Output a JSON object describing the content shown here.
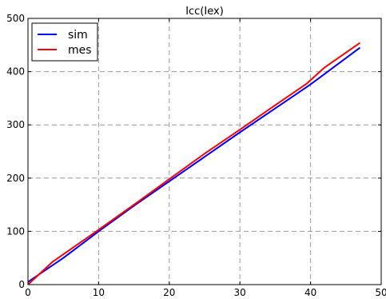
{
  "chart_data": {
    "type": "line",
    "title": "Icc(Iex)",
    "xlabel": "",
    "ylabel": "",
    "xlim": [
      0,
      50
    ],
    "ylim": [
      0,
      500
    ],
    "xticks": [
      "0",
      "10",
      "20",
      "30",
      "40",
      "50"
    ],
    "yticks": [
      "0",
      "100",
      "200",
      "300",
      "400",
      "500"
    ],
    "grid": true,
    "legend_position": "top-left",
    "series": [
      {
        "name": "sim",
        "color": "#0000ff",
        "x": [
          0,
          5,
          10,
          15,
          20,
          25,
          30,
          35,
          40,
          47
        ],
        "y": [
          5,
          50,
          100,
          148,
          194,
          240,
          286,
          331,
          376,
          445
        ]
      },
      {
        "name": "mes",
        "color": "#ff0000",
        "x": [
          0,
          3.5,
          10,
          15,
          20,
          25,
          30,
          35,
          39.5,
          42,
          47
        ],
        "y": [
          0,
          43,
          103,
          150,
          198,
          246,
          291,
          337,
          378,
          408,
          454
        ]
      }
    ]
  }
}
